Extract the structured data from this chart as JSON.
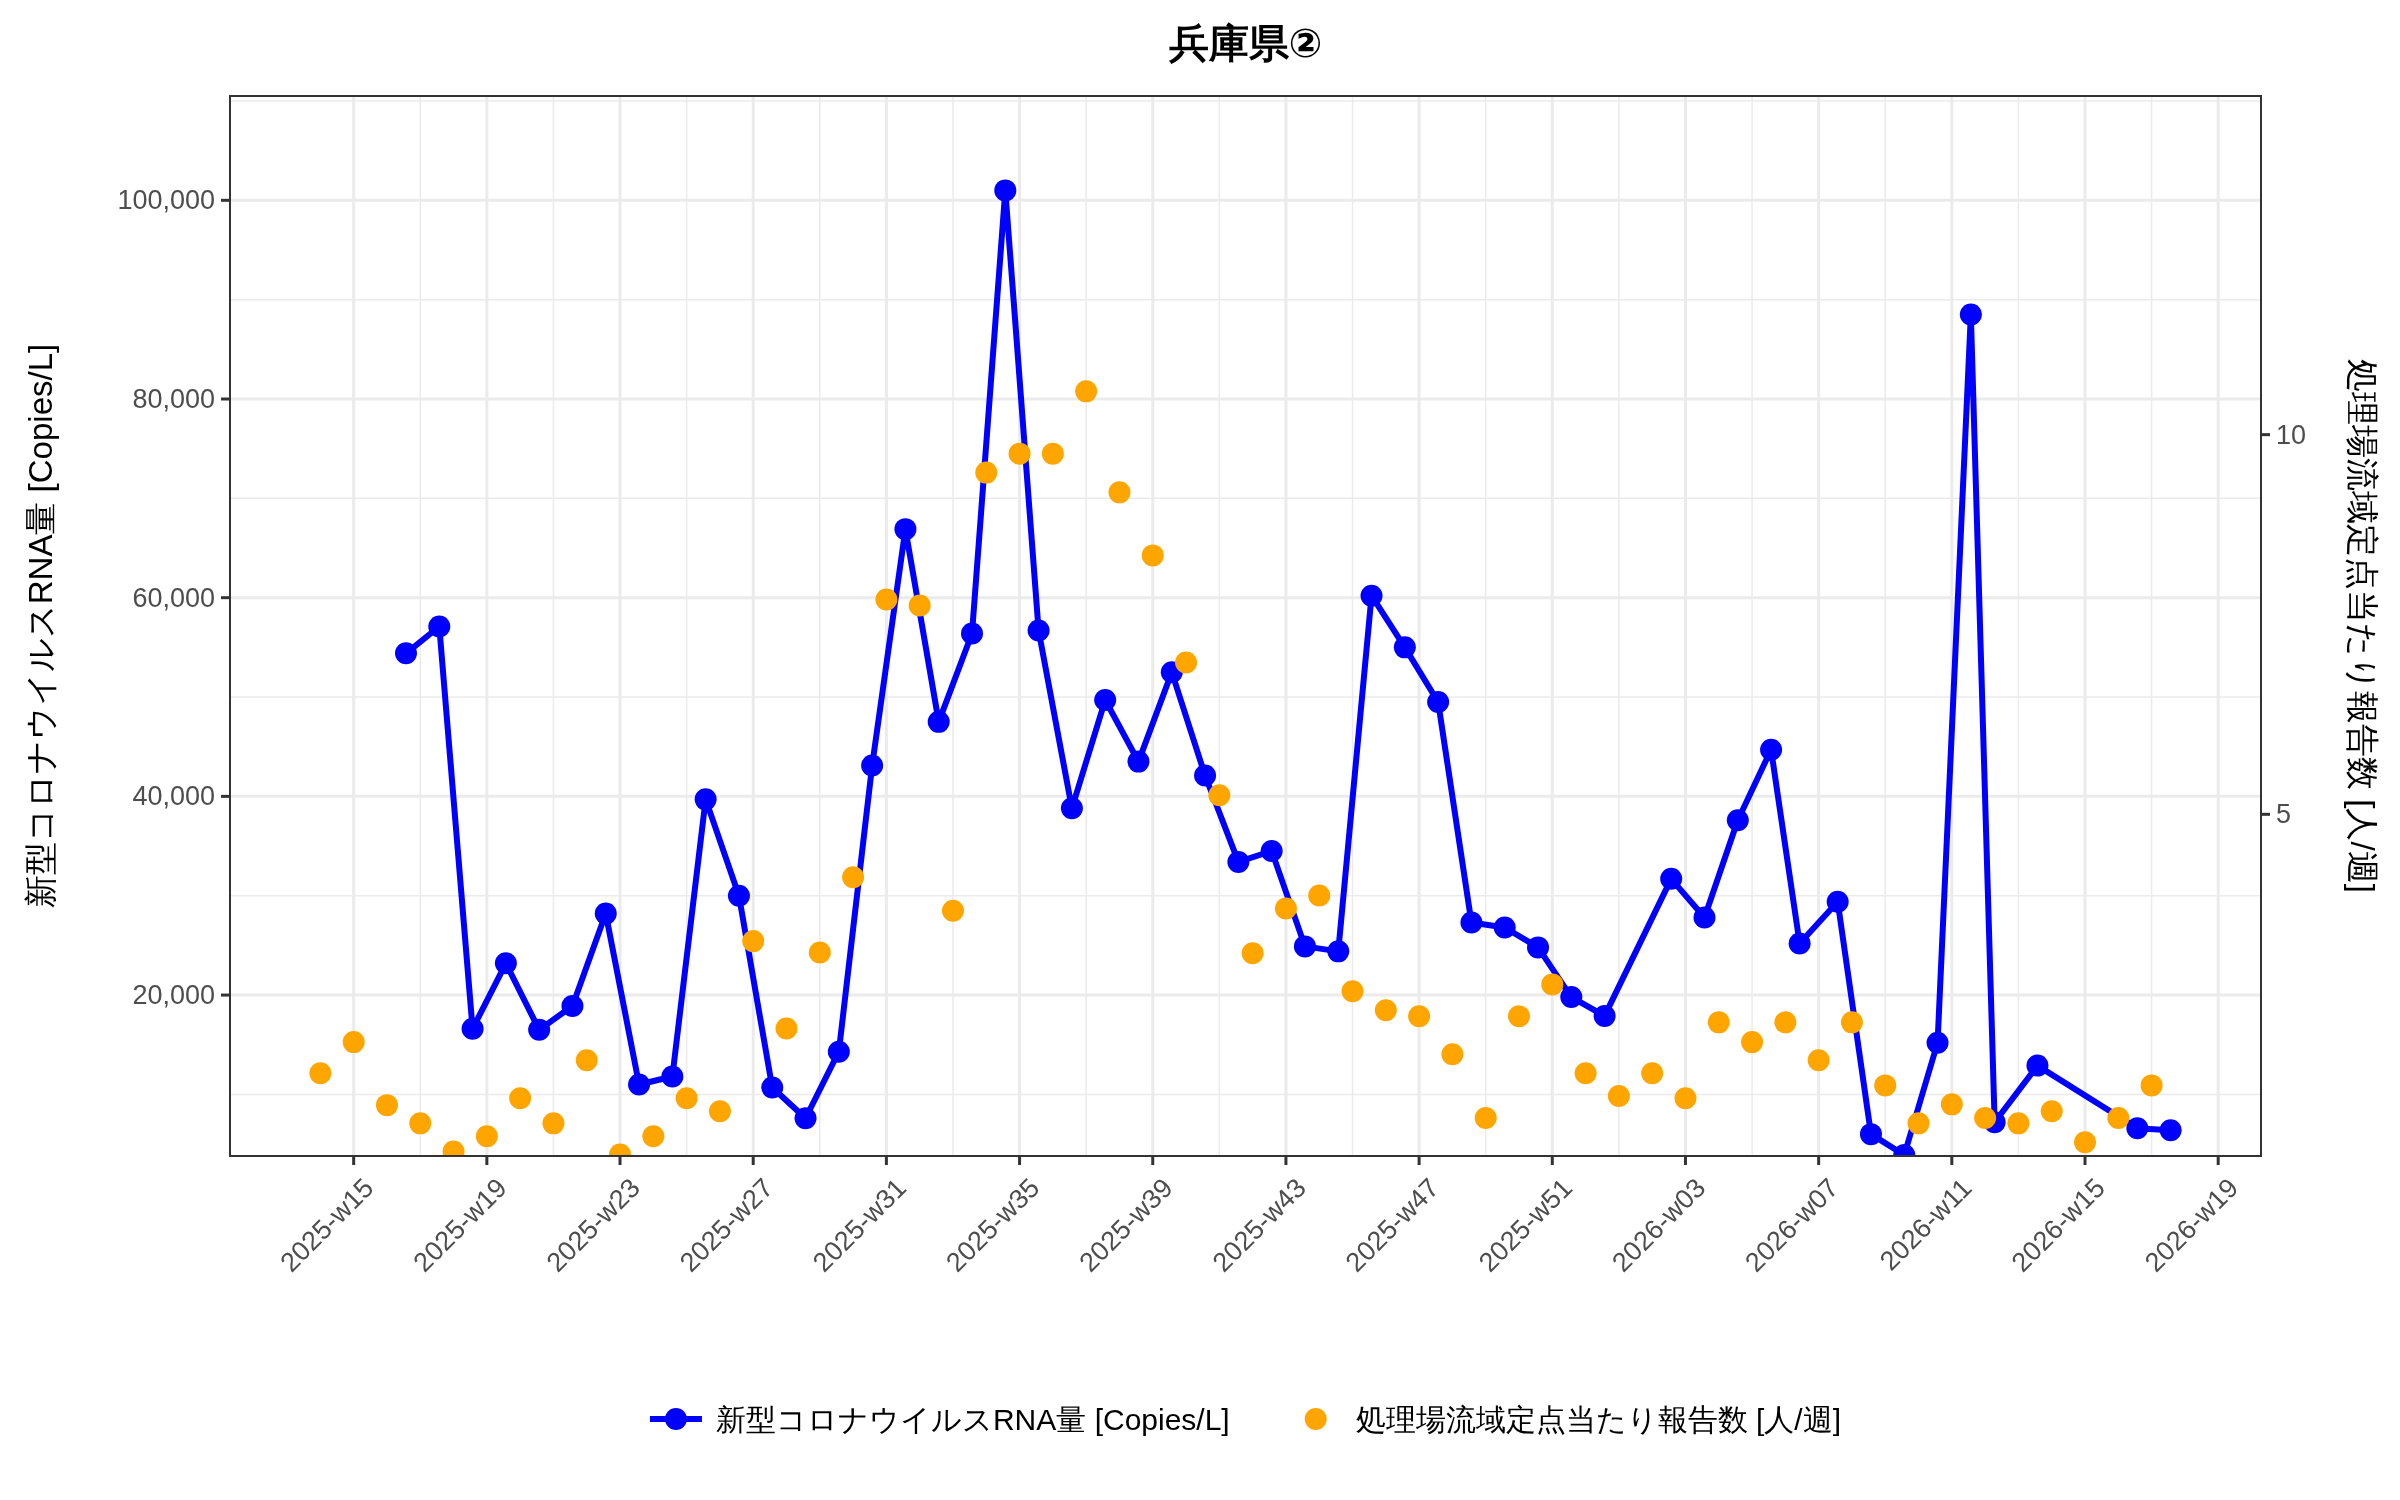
{
  "chart_data": {
    "type": "line",
    "title": "兵庫県②",
    "ylabel": "新型コロナウイルスRNA量 [Copies/L]",
    "y2label": "処理場流域定点当たり報告数 [人/週]",
    "xlim": [
      "2025-03-12",
      "2026-05-13"
    ],
    "xticks": [
      {
        "value": "2025-04-07",
        "label": "2025-w15"
      },
      {
        "value": "2025-05-05",
        "label": "2025-w19"
      },
      {
        "value": "2025-06-02",
        "label": "2025-w23"
      },
      {
        "value": "2025-06-30",
        "label": "2025-w27"
      },
      {
        "value": "2025-07-28",
        "label": "2025-w31"
      },
      {
        "value": "2025-08-25",
        "label": "2025-w35"
      },
      {
        "value": "2025-09-22",
        "label": "2025-w39"
      },
      {
        "value": "2025-10-20",
        "label": "2025-w43"
      },
      {
        "value": "2025-11-17",
        "label": "2025-w47"
      },
      {
        "value": "2025-12-15",
        "label": "2025-w51"
      },
      {
        "value": "2026-01-12",
        "label": "2026-w03"
      },
      {
        "value": "2026-02-09",
        "label": "2026-w07"
      },
      {
        "value": "2026-03-09",
        "label": "2026-w11"
      },
      {
        "value": "2026-04-06",
        "label": "2026-w15"
      },
      {
        "value": "2026-05-04",
        "label": "2026-w19"
      }
    ],
    "ylim": [
      3800,
      110500
    ],
    "yticks": [
      {
        "value": 20000,
        "label": "20,000"
      },
      {
        "value": 40000,
        "label": "40,000"
      },
      {
        "value": 60000,
        "label": "60,000"
      },
      {
        "value": 80000,
        "label": "80,000"
      },
      {
        "value": 100000,
        "label": "100,000"
      }
    ],
    "y2lim": [
      0.5,
      14.46
    ],
    "y2ticks": [
      5,
      10
    ],
    "grid": true,
    "legend": "bottom",
    "series": [
      {
        "name": "新型コロナウイルスRNA量 [Copies/L]",
        "marker": "circle",
        "color": "#0000ff",
        "x": [
          "2025-04-18",
          "2025-04-25",
          "2025-05-02",
          "2025-05-09",
          "2025-05-16",
          "2025-05-23",
          "2025-05-30",
          "2025-06-06",
          "2025-06-13",
          "2025-06-20",
          "2025-06-27",
          "2025-07-04",
          "2025-07-11",
          "2025-07-18",
          "2025-07-25",
          "2025-08-01",
          "2025-08-08",
          "2025-08-15",
          "2025-08-22",
          "2025-08-29",
          "2025-09-05",
          "2025-09-12",
          "2025-09-19",
          "2025-09-26",
          "2025-10-03",
          "2025-10-10",
          "2025-10-17",
          "2025-10-24",
          "2025-10-31",
          "2025-11-07",
          "2025-11-14",
          "2025-11-21",
          "2025-11-28",
          "2025-12-05",
          "2025-12-12",
          "2025-12-19",
          "2025-12-26",
          "2026-01-09",
          "2026-01-16",
          "2026-01-23",
          "2026-01-30",
          "2026-02-05",
          "2026-02-13",
          "2026-02-20",
          "2026-02-27",
          "2026-03-06",
          "2026-03-13",
          "2026-03-18",
          "2026-03-27",
          "2026-04-17",
          "2026-04-24"
        ],
        "values": [
          54400,
          57100,
          16600,
          23200,
          16500,
          18900,
          28200,
          11000,
          11800,
          39700,
          30000,
          10700,
          7600,
          14300,
          43100,
          66900,
          47500,
          56400,
          101000,
          56700,
          38800,
          49700,
          43500,
          52500,
          42100,
          33400,
          34500,
          24900,
          24400,
          60200,
          55000,
          49500,
          27300,
          26800,
          24800,
          19800,
          17900,
          31700,
          27800,
          37600,
          44700,
          25200,
          29400,
          6000,
          3900,
          15200,
          88500,
          7200,
          12900,
          6600,
          6400
        ]
      },
      {
        "name": "処理場流域定点当たり報告数 [人/週]",
        "type": "scatter",
        "marker": "circle",
        "axis": "y2",
        "color": "#ffa500",
        "x": [
          "2025-03-31",
          "2025-04-07",
          "2025-04-14",
          "2025-04-21",
          "2025-04-28",
          "2025-05-05",
          "2025-05-12",
          "2025-05-19",
          "2025-05-26",
          "2025-06-02",
          "2025-06-09",
          "2025-06-16",
          "2025-06-23",
          "2025-06-30",
          "2025-07-07",
          "2025-07-14",
          "2025-07-21",
          "2025-07-28",
          "2025-08-04",
          "2025-08-11",
          "2025-08-18",
          "2025-08-25",
          "2025-09-01",
          "2025-09-08",
          "2025-09-15",
          "2025-09-22",
          "2025-09-29",
          "2025-10-06",
          "2025-10-13",
          "2025-10-20",
          "2025-10-27",
          "2025-11-03",
          "2025-11-10",
          "2025-11-17",
          "2025-11-24",
          "2025-12-01",
          "2025-12-08",
          "2025-12-15",
          "2025-12-22",
          "2025-12-29",
          "2026-01-05",
          "2026-01-12",
          "2026-01-19",
          "2026-01-26",
          "2026-02-02",
          "2026-02-09",
          "2026-02-16",
          "2026-02-23",
          "2026-03-02",
          "2026-03-09",
          "2026-03-16",
          "2026-03-23",
          "2026-03-30",
          "2026-04-06",
          "2026-04-13",
          "2026-04-20"
        ],
        "values": [
          1.59,
          2.0,
          1.17,
          0.93,
          0.56,
          0.76,
          1.26,
          0.93,
          1.76,
          0.52,
          0.76,
          1.26,
          1.09,
          3.33,
          2.18,
          3.18,
          4.17,
          7.83,
          7.75,
          3.73,
          9.5,
          9.75,
          9.75,
          10.57,
          9.24,
          8.41,
          7.0,
          5.25,
          3.17,
          3.76,
          3.93,
          2.67,
          2.42,
          2.34,
          1.84,
          1.0,
          2.34,
          2.76,
          1.59,
          1.29,
          1.59,
          1.26,
          2.26,
          2.0,
          2.26,
          1.76,
          2.26,
          1.43,
          0.93,
          1.18,
          1.0,
          0.93,
          1.09,
          0.68,
          1.0,
          1.43
        ]
      }
    ]
  }
}
